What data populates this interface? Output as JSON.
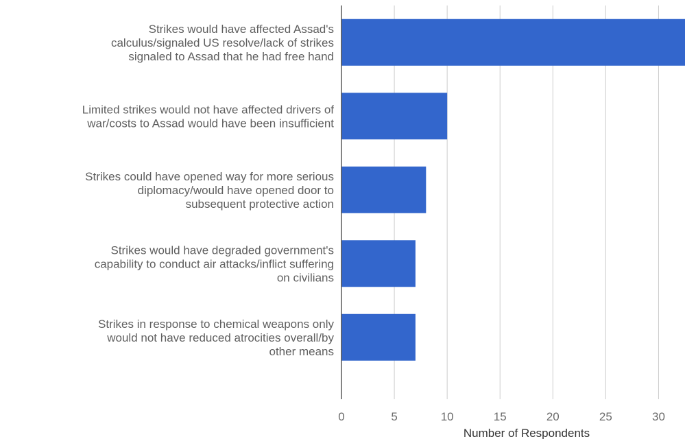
{
  "chart_data": {
    "type": "bar",
    "orientation": "horizontal",
    "title": "",
    "xlabel": "Number of Respondents",
    "ylabel": "",
    "xlim": [
      0,
      32.5
    ],
    "xticks": [
      0,
      5,
      10,
      15,
      20,
      25,
      30
    ],
    "grid": true,
    "legend": "none",
    "bar_color": "#3366cc",
    "categories": [
      [
        "Strikes would have affected Assad's",
        "calculus/signaled US resolve/lack of strikes",
        "signaled to Assad that he had free hand"
      ],
      [
        "Limited strikes would not have affected drivers of",
        "war/costs to Assad would have been insufficient"
      ],
      [
        "Strikes could have opened way for more serious",
        "diplomacy/would have opened door to",
        "subsequent protective action"
      ],
      [
        "Strikes would have degraded government's",
        "capability to conduct air attacks/inflict suffering",
        "on civilians"
      ],
      [
        "Strikes in response to chemical weapons only",
        "would not have reduced atrocities overall/by",
        "other means"
      ]
    ],
    "values": [
      33,
      10,
      8,
      7,
      7
    ]
  }
}
